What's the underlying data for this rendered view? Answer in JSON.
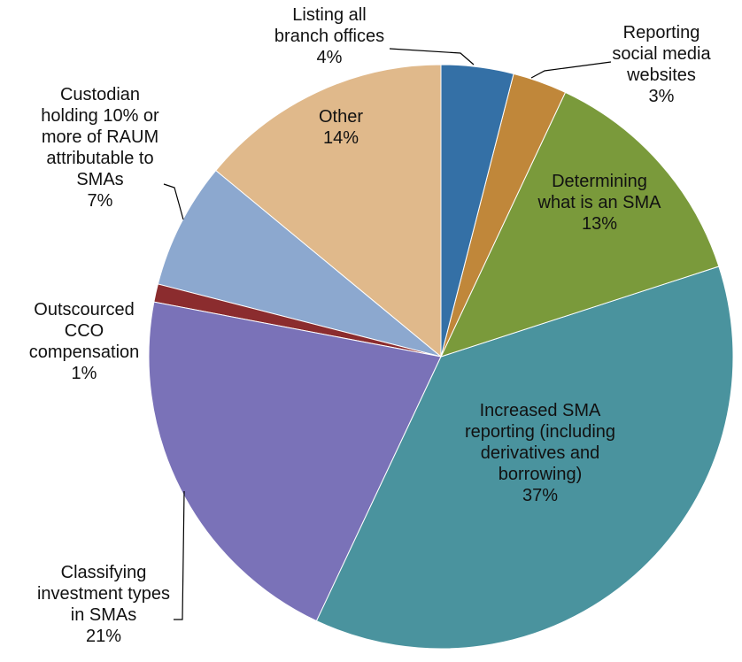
{
  "chart_data": {
    "type": "pie",
    "categories": [
      "Listing all branch offices",
      "Reporting social media websites",
      "Determining what is an SMA",
      "Increased SMA reporting (including derivatives and borrowing)",
      "Classifying investment types in SMAs",
      "Outscourced CCO compensation",
      "Custodian holding 10% or more of RAUM attributable to SMAs",
      "Other"
    ],
    "values": [
      4,
      3,
      13,
      37,
      21,
      1,
      7,
      14
    ],
    "value_labels": [
      "4%",
      "3%",
      "13%",
      "37%",
      "21%",
      "1%",
      "7%",
      "14%"
    ],
    "colors": [
      "#3470a6",
      "#c0873a",
      "#7a9a3b",
      "#4a939e",
      "#7a72b8",
      "#8b2c2e",
      "#8ca8cf",
      "#e0b98b"
    ]
  }
}
